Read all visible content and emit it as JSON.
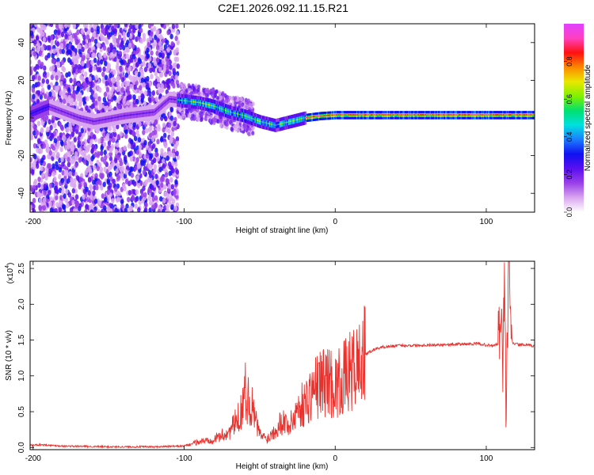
{
  "title": "C2E1.2026.092.11.15.R21",
  "chart_data": [
    {
      "type": "heatmap",
      "name": "spectrogram",
      "xlabel": "Height of straight line (km)",
      "ylabel": "Frequency (Hz)",
      "xlim": [
        -202,
        132
      ],
      "ylim": [
        -50,
        50
      ],
      "xticks": [
        -200,
        -100,
        0,
        100
      ],
      "yticks": [
        -40,
        -20,
        0,
        20,
        40
      ],
      "ridge": [
        {
          "x": -202,
          "y": 2
        },
        {
          "x": -190,
          "y": 6
        },
        {
          "x": -180,
          "y": 3
        },
        {
          "x": -170,
          "y": 0
        },
        {
          "x": -160,
          "y": -2
        },
        {
          "x": -140,
          "y": 1
        },
        {
          "x": -120,
          "y": 3
        },
        {
          "x": -110,
          "y": 10
        },
        {
          "x": -100,
          "y": 9
        },
        {
          "x": -90,
          "y": 8
        },
        {
          "x": -80,
          "y": 6
        },
        {
          "x": -70,
          "y": 3
        },
        {
          "x": -60,
          "y": 1
        },
        {
          "x": -50,
          "y": -2
        },
        {
          "x": -40,
          "y": -4
        },
        {
          "x": -30,
          "y": -2
        },
        {
          "x": -20,
          "y": 0
        },
        {
          "x": -10,
          "y": 1
        },
        {
          "x": 0,
          "y": 1.5
        },
        {
          "x": 20,
          "y": 1.5
        },
        {
          "x": 60,
          "y": 1.5
        },
        {
          "x": 100,
          "y": 1.5
        },
        {
          "x": 132,
          "y": 1.5
        }
      ],
      "colorbar": {
        "label": "Normalized spectral amplitude",
        "range": [
          0,
          1
        ],
        "ticks": [
          0.0,
          0.2,
          0.4,
          0.6,
          0.8
        ],
        "tick_labels": [
          "0.0",
          "0.2",
          "0.4",
          "0.6",
          "0.8"
        ],
        "colors": [
          "#ffffff",
          "#d9a6f0",
          "#9a40e8",
          "#5a10f0",
          "#1010f0",
          "#1c7cff",
          "#00e0e0",
          "#00e070",
          "#7ff000",
          "#e8e800",
          "#ff8800",
          "#ff1010",
          "#ff40c0",
          "#e040ff"
        ]
      }
    },
    {
      "type": "line",
      "name": "snr",
      "xlabel": "Height of straight line (km)",
      "ylabel": "SNR (10 * v/v)",
      "scale_label": "(x10",
      "scale_exp": "4",
      "scale_close": ")",
      "xlim": [
        -202,
        132
      ],
      "ylim": [
        -0.03,
        2.6
      ],
      "xticks": [
        -200,
        -100,
        0,
        100
      ],
      "yticks": [
        0.0,
        0.5,
        1.0,
        1.5,
        2.0,
        2.5
      ],
      "ytick_labels": [
        "0.0",
        "0.5",
        "1.0",
        "1.5",
        "2.0",
        "2.5"
      ],
      "color": "#e8322e",
      "series": [
        {
          "x": -202,
          "y": 0.03
        },
        {
          "x": -195,
          "y": 0.04
        },
        {
          "x": -180,
          "y": 0.02
        },
        {
          "x": -150,
          "y": 0.01
        },
        {
          "x": -120,
          "y": 0.01
        },
        {
          "x": -100,
          "y": 0.02
        },
        {
          "x": -90,
          "y": 0.08
        },
        {
          "x": -80,
          "y": 0.12
        },
        {
          "x": -70,
          "y": 0.22
        },
        {
          "x": -63,
          "y": 0.45
        },
        {
          "x": -60,
          "y": 0.8
        },
        {
          "x": -55,
          "y": 0.55
        },
        {
          "x": -50,
          "y": 0.18
        },
        {
          "x": -45,
          "y": 0.12
        },
        {
          "x": -40,
          "y": 0.25
        },
        {
          "x": -35,
          "y": 0.38
        },
        {
          "x": -30,
          "y": 0.3
        },
        {
          "x": -25,
          "y": 0.55
        },
        {
          "x": -20,
          "y": 0.62
        },
        {
          "x": -15,
          "y": 0.8
        },
        {
          "x": -10,
          "y": 0.9
        },
        {
          "x": -5,
          "y": 0.95
        },
        {
          "x": 0,
          "y": 0.85
        },
        {
          "x": 5,
          "y": 0.95
        },
        {
          "x": 10,
          "y": 1.05
        },
        {
          "x": 15,
          "y": 1.15
        },
        {
          "x": 20,
          "y": 1.3
        },
        {
          "x": 25,
          "y": 1.36
        },
        {
          "x": 30,
          "y": 1.4
        },
        {
          "x": 40,
          "y": 1.42
        },
        {
          "x": 60,
          "y": 1.43
        },
        {
          "x": 80,
          "y": 1.44
        },
        {
          "x": 95,
          "y": 1.45
        },
        {
          "x": 100,
          "y": 1.43
        },
        {
          "x": 105,
          "y": 1.42
        },
        {
          "x": 108,
          "y": 1.45
        },
        {
          "x": 110,
          "y": 1.9
        },
        {
          "x": 111,
          "y": 1.1
        },
        {
          "x": 112,
          "y": 2.3
        },
        {
          "x": 113,
          "y": 0.6
        },
        {
          "x": 114,
          "y": 1.5
        },
        {
          "x": 115,
          "y": 2.5
        },
        {
          "x": 116,
          "y": 1.55
        },
        {
          "x": 118,
          "y": 1.45
        },
        {
          "x": 125,
          "y": 1.43
        },
        {
          "x": 132,
          "y": 1.42
        }
      ]
    }
  ]
}
